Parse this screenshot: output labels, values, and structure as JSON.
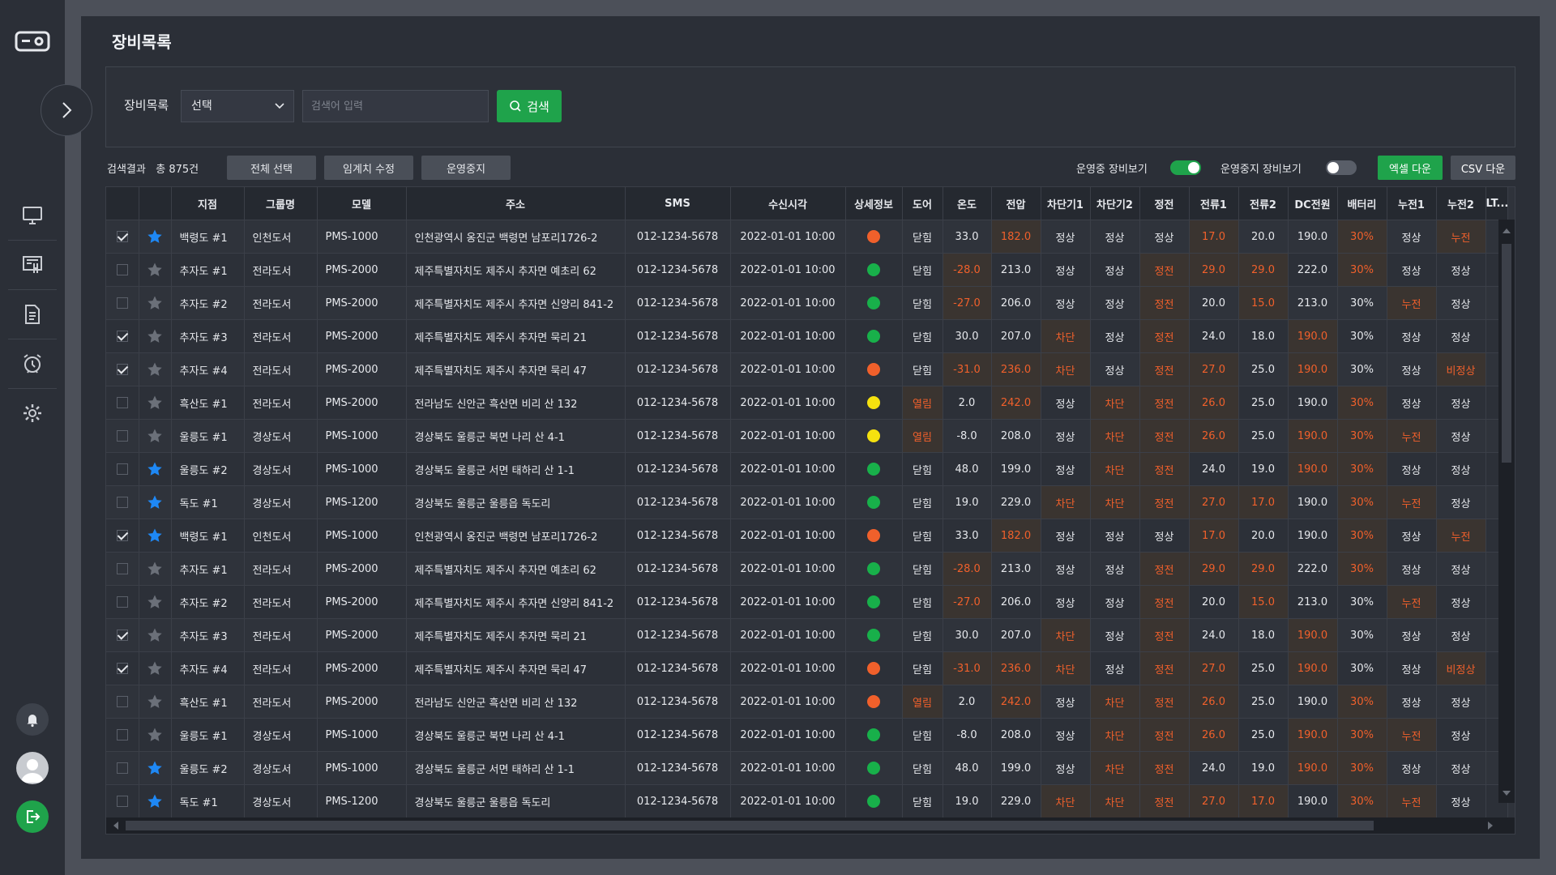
{
  "page_title": "장비목록",
  "search": {
    "label": "장비목록",
    "select_value": "선택",
    "placeholder": "검색어 입력",
    "button": "검색"
  },
  "result": {
    "text": "검색결과   총 875건",
    "select_all": "전체 선택",
    "threshold_edit": "임계치 수정",
    "stop_operation": "운영중지",
    "toggle_running_label": "운영중 장비보기",
    "toggle_running_on": true,
    "toggle_stopped_label": "운영중지 장비보기",
    "toggle_stopped_on": false,
    "excel_download": "엑셀 다운",
    "csv_download": "CSV 다운"
  },
  "colors": {
    "accent_green": "#1fa34b",
    "alert_orange": "#f0602b",
    "star_blue": "#1e88f5",
    "star_gray": "#6b7079",
    "status_red": "#f0602b",
    "status_green": "#18b04a",
    "status_yellow": "#f5e10f"
  },
  "table": {
    "columns": [
      "",
      "",
      "지점",
      "그룹명",
      "모델",
      "주소",
      "SMS",
      "수신시각",
      "상세정보",
      "도어",
      "온도",
      "전압",
      "차단기1",
      "차단기2",
      "정전",
      "전류1",
      "전류2",
      "DC전원",
      "배터리",
      "누전1",
      "누전2",
      "LT..."
    ],
    "rows": [
      {
        "checked": true,
        "fav": true,
        "cells": [
          "백령도 #1",
          "인천도서",
          "PMS-1000",
          "인천광역시 옹진군 백령면 남포리1726-2",
          "012-1234-5678",
          "2022-01-01  10:00",
          "red",
          "닫힘",
          "33.0",
          "182.0",
          "정상",
          "정상",
          "정상",
          "17.0",
          "20.0",
          "190.0",
          "30%",
          "정상",
          "누전"
        ],
        "alerts": [
          9,
          13,
          16,
          18
        ]
      },
      {
        "checked": false,
        "fav": false,
        "cells": [
          "추자도 #1",
          "전라도서",
          "PMS-2000",
          "제주특별자치도 제주시 추자면 예초리 62",
          "012-1234-5678",
          "2022-01-01  10:00",
          "green",
          "닫힘",
          "-28.0",
          "213.0",
          "정상",
          "정상",
          "정전",
          "29.0",
          "29.0",
          "222.0",
          "30%",
          "정상",
          "정상"
        ],
        "alerts": [
          8,
          12,
          13,
          14,
          16
        ]
      },
      {
        "checked": false,
        "fav": false,
        "cells": [
          "추자도 #2",
          "전라도서",
          "PMS-2000",
          "제주특별자치도 제주시 추자면 신양리 841-2",
          "012-1234-5678",
          "2022-01-01  10:00",
          "green",
          "닫힘",
          "-27.0",
          "206.0",
          "정상",
          "정상",
          "정전",
          "20.0",
          "15.0",
          "213.0",
          "30%",
          "누전",
          "정상"
        ],
        "alerts": [
          8,
          12,
          14,
          17
        ]
      },
      {
        "checked": true,
        "fav": false,
        "cells": [
          "추자도 #3",
          "전라도서",
          "PMS-2000",
          "제주특별자치도 제주시 추자면 묵리 21",
          "012-1234-5678",
          "2022-01-01  10:00",
          "green",
          "닫힘",
          "30.0",
          "207.0",
          "차단",
          "정상",
          "정전",
          "24.0",
          "18.0",
          "190.0",
          "30%",
          "정상",
          "정상"
        ],
        "alerts": [
          10,
          12,
          15
        ]
      },
      {
        "checked": true,
        "fav": false,
        "cells": [
          "추자도 #4",
          "전라도서",
          "PMS-2000",
          "제주특별자치도 제주시 추자면 묵리 47",
          "012-1234-5678",
          "2022-01-01  10:00",
          "red",
          "닫힘",
          "-31.0",
          "236.0",
          "차단",
          "정상",
          "정전",
          "27.0",
          "25.0",
          "190.0",
          "30%",
          "정상",
          "비정상"
        ],
        "alerts": [
          8,
          9,
          10,
          12,
          13,
          15,
          18
        ]
      },
      {
        "checked": false,
        "fav": false,
        "cells": [
          "흑산도 #1",
          "전라도서",
          "PMS-2000",
          "전라남도 신안군 흑산면 비리 산 132",
          "012-1234-5678",
          "2022-01-01  10:00",
          "yellow",
          "열림",
          "2.0",
          "242.0",
          "정상",
          "차단",
          "정전",
          "26.0",
          "25.0",
          "190.0",
          "30%",
          "정상",
          "정상"
        ],
        "alerts": [
          7,
          9,
          11,
          12,
          13,
          16
        ]
      },
      {
        "checked": false,
        "fav": false,
        "cells": [
          "울릉도 #1",
          "경상도서",
          "PMS-1000",
          "경상북도 울릉군 북면 나리 산 4-1",
          "012-1234-5678",
          "2022-01-01  10:00",
          "yellow",
          "열림",
          "-8.0",
          "208.0",
          "정상",
          "차단",
          "정전",
          "26.0",
          "25.0",
          "190.0",
          "30%",
          "누전",
          "정상"
        ],
        "alerts": [
          7,
          11,
          12,
          13,
          15,
          16,
          17
        ]
      },
      {
        "checked": false,
        "fav": true,
        "cells": [
          "울릉도 #2",
          "경상도서",
          "PMS-1000",
          "경상북도 울릉군 서면 태하리 산 1-1",
          "012-1234-5678",
          "2022-01-01  10:00",
          "green",
          "닫힘",
          "48.0",
          "199.0",
          "정상",
          "차단",
          "정전",
          "24.0",
          "19.0",
          "190.0",
          "30%",
          "정상",
          "정상"
        ],
        "alerts": [
          11,
          12,
          15,
          16
        ]
      },
      {
        "checked": false,
        "fav": true,
        "cells": [
          "독도 #1",
          "경상도서",
          "PMS-1200",
          "경상북도 울릉군 울릉읍 독도리",
          "012-1234-5678",
          "2022-01-01  10:00",
          "green",
          "닫힘",
          "19.0",
          "229.0",
          "차단",
          "차단",
          "정전",
          "27.0",
          "17.0",
          "190.0",
          "30%",
          "누전",
          "정상"
        ],
        "alerts": [
          10,
          11,
          12,
          13,
          14,
          16,
          17
        ]
      },
      {
        "checked": true,
        "fav": true,
        "cells": [
          "백령도 #1",
          "인천도서",
          "PMS-1000",
          "인천광역시 옹진군 백령면 남포리1726-2",
          "012-1234-5678",
          "2022-01-01  10:00",
          "red",
          "닫힘",
          "33.0",
          "182.0",
          "정상",
          "정상",
          "정상",
          "17.0",
          "20.0",
          "190.0",
          "30%",
          "정상",
          "누전"
        ],
        "alerts": [
          9,
          13,
          16,
          18
        ]
      },
      {
        "checked": false,
        "fav": false,
        "cells": [
          "추자도 #1",
          "전라도서",
          "PMS-2000",
          "제주특별자치도 제주시 추자면 예초리 62",
          "012-1234-5678",
          "2022-01-01  10:00",
          "green",
          "닫힘",
          "-28.0",
          "213.0",
          "정상",
          "정상",
          "정전",
          "29.0",
          "29.0",
          "222.0",
          "30%",
          "정상",
          "정상"
        ],
        "alerts": [
          8,
          12,
          13,
          14,
          16
        ]
      },
      {
        "checked": false,
        "fav": false,
        "cells": [
          "추자도 #2",
          "전라도서",
          "PMS-2000",
          "제주특별자치도 제주시 추자면 신양리 841-2",
          "012-1234-5678",
          "2022-01-01  10:00",
          "green",
          "닫힘",
          "-27.0",
          "206.0",
          "정상",
          "정상",
          "정전",
          "20.0",
          "15.0",
          "213.0",
          "30%",
          "누전",
          "정상"
        ],
        "alerts": [
          8,
          12,
          14,
          17
        ]
      },
      {
        "checked": true,
        "fav": false,
        "cells": [
          "추자도 #3",
          "전라도서",
          "PMS-2000",
          "제주특별자치도 제주시 추자면 묵리 21",
          "012-1234-5678",
          "2022-01-01  10:00",
          "green",
          "닫힘",
          "30.0",
          "207.0",
          "차단",
          "정상",
          "정전",
          "24.0",
          "18.0",
          "190.0",
          "30%",
          "정상",
          "정상"
        ],
        "alerts": [
          10,
          12,
          15
        ]
      },
      {
        "checked": true,
        "fav": false,
        "cells": [
          "추자도 #4",
          "전라도서",
          "PMS-2000",
          "제주특별자치도 제주시 추자면 묵리 47",
          "012-1234-5678",
          "2022-01-01  10:00",
          "red",
          "닫힘",
          "-31.0",
          "236.0",
          "차단",
          "정상",
          "정전",
          "27.0",
          "25.0",
          "190.0",
          "30%",
          "정상",
          "비정상"
        ],
        "alerts": [
          8,
          9,
          10,
          12,
          13,
          15,
          18
        ]
      },
      {
        "checked": false,
        "fav": false,
        "cells": [
          "흑산도 #1",
          "전라도서",
          "PMS-2000",
          "전라남도 신안군 흑산면 비리 산 132",
          "012-1234-5678",
          "2022-01-01  10:00",
          "red",
          "열림",
          "2.0",
          "242.0",
          "정상",
          "차단",
          "정전",
          "26.0",
          "25.0",
          "190.0",
          "30%",
          "정상",
          "정상"
        ],
        "alerts": [
          7,
          9,
          11,
          12,
          13,
          16
        ]
      },
      {
        "checked": false,
        "fav": false,
        "cells": [
          "울릉도 #1",
          "경상도서",
          "PMS-1000",
          "경상북도 울릉군 북면 나리 산 4-1",
          "012-1234-5678",
          "2022-01-01  10:00",
          "green",
          "닫힘",
          "-8.0",
          "208.0",
          "정상",
          "차단",
          "정전",
          "26.0",
          "25.0",
          "190.0",
          "30%",
          "누전",
          "정상"
        ],
        "alerts": [
          11,
          12,
          13,
          15,
          16,
          17
        ]
      },
      {
        "checked": false,
        "fav": true,
        "cells": [
          "울릉도 #2",
          "경상도서",
          "PMS-1000",
          "경상북도 울릉군 서면 태하리 산 1-1",
          "012-1234-5678",
          "2022-01-01  10:00",
          "green",
          "닫힘",
          "48.0",
          "199.0",
          "정상",
          "차단",
          "정전",
          "24.0",
          "19.0",
          "190.0",
          "30%",
          "정상",
          "정상"
        ],
        "alerts": [
          11,
          12,
          15,
          16
        ]
      },
      {
        "checked": false,
        "fav": true,
        "cells": [
          "독도 #1",
          "경상도서",
          "PMS-1200",
          "경상북도 울릉군 울릉읍 독도리",
          "012-1234-5678",
          "2022-01-01  10:00",
          "green",
          "닫힘",
          "19.0",
          "229.0",
          "차단",
          "차단",
          "정전",
          "27.0",
          "17.0",
          "190.0",
          "30%",
          "누전",
          "정상"
        ],
        "alerts": [
          10,
          11,
          12,
          13,
          14,
          16,
          17
        ]
      }
    ]
  },
  "icons": {
    "logo": "device-logo-icon",
    "expand": "chevron-right-icon",
    "nav": [
      "monitor-icon",
      "equipment-icon",
      "document-icon",
      "alarm-clock-icon",
      "settings-gear-icon"
    ],
    "notification": "bell-icon",
    "profile": "user-avatar-icon",
    "logout": "logout-icon"
  }
}
